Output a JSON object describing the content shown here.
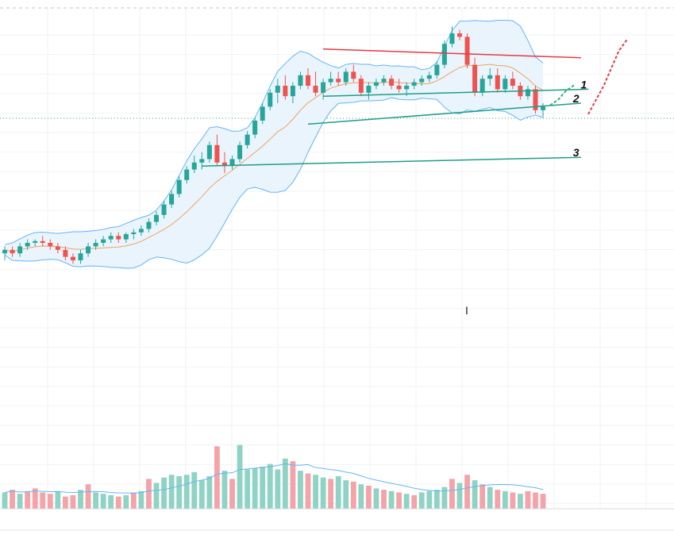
{
  "chart_data": {
    "type": "candlestick",
    "title": "",
    "xlabel": "",
    "ylabel": "",
    "grid": true,
    "ylim": [
      0,
      100
    ],
    "volume_ylim": [
      0,
      100
    ],
    "colors": {
      "up": "#26a69a",
      "down": "#ef5350",
      "volume_up": "#8fd3c4",
      "volume_down": "#f4a3a8",
      "band": "#64b5f6",
      "band_fill": "#eaf4fc",
      "ma": "#f0a35e",
      "channel": "#e53945",
      "support": "#1e9e86",
      "projection_up": "#2bb07f",
      "projection_down": "#e53945"
    },
    "candles": [
      {
        "o": 32,
        "h": 34,
        "l": 30,
        "c": 33
      },
      {
        "o": 33,
        "h": 34,
        "l": 31,
        "c": 32
      },
      {
        "o": 32,
        "h": 35,
        "l": 31,
        "c": 34
      },
      {
        "o": 34,
        "h": 36,
        "l": 33,
        "c": 35
      },
      {
        "o": 35,
        "h": 36,
        "l": 34,
        "c": 35.5
      },
      {
        "o": 35.5,
        "h": 37,
        "l": 34,
        "c": 35
      },
      {
        "o": 35,
        "h": 36,
        "l": 33,
        "c": 34
      },
      {
        "o": 34,
        "h": 35,
        "l": 32,
        "c": 33
      },
      {
        "o": 33,
        "h": 34,
        "l": 30,
        "c": 31
      },
      {
        "o": 31,
        "h": 32,
        "l": 29,
        "c": 30
      },
      {
        "o": 30,
        "h": 33,
        "l": 29,
        "c": 32
      },
      {
        "o": 32,
        "h": 35,
        "l": 31,
        "c": 34
      },
      {
        "o": 34,
        "h": 36,
        "l": 33,
        "c": 35
      },
      {
        "o": 35,
        "h": 37,
        "l": 34,
        "c": 36
      },
      {
        "o": 36,
        "h": 38,
        "l": 35,
        "c": 37
      },
      {
        "o": 37,
        "h": 38,
        "l": 35,
        "c": 36
      },
      {
        "o": 36,
        "h": 38,
        "l": 35,
        "c": 37.5
      },
      {
        "o": 37.5,
        "h": 39,
        "l": 36,
        "c": 38
      },
      {
        "o": 38,
        "h": 40,
        "l": 37,
        "c": 39
      },
      {
        "o": 39,
        "h": 42,
        "l": 38,
        "c": 41
      },
      {
        "o": 41,
        "h": 44,
        "l": 40,
        "c": 43
      },
      {
        "o": 43,
        "h": 47,
        "l": 42,
        "c": 46
      },
      {
        "o": 46,
        "h": 50,
        "l": 45,
        "c": 49
      },
      {
        "o": 49,
        "h": 54,
        "l": 48,
        "c": 53
      },
      {
        "o": 53,
        "h": 57,
        "l": 52,
        "c": 56
      },
      {
        "o": 56,
        "h": 60,
        "l": 55,
        "c": 58
      },
      {
        "o": 58,
        "h": 61,
        "l": 56,
        "c": 59
      },
      {
        "o": 59,
        "h": 64,
        "l": 58,
        "c": 63
      },
      {
        "o": 63,
        "h": 66,
        "l": 57,
        "c": 58
      },
      {
        "o": 58,
        "h": 61,
        "l": 55,
        "c": 57
      },
      {
        "o": 57,
        "h": 60,
        "l": 56,
        "c": 59
      },
      {
        "o": 59,
        "h": 64,
        "l": 58,
        "c": 63
      },
      {
        "o": 63,
        "h": 67,
        "l": 62,
        "c": 66
      },
      {
        "o": 66,
        "h": 71,
        "l": 65,
        "c": 70
      },
      {
        "o": 70,
        "h": 75,
        "l": 69,
        "c": 74
      },
      {
        "o": 74,
        "h": 79,
        "l": 73,
        "c": 78
      },
      {
        "o": 78,
        "h": 82,
        "l": 75,
        "c": 80
      },
      {
        "o": 80,
        "h": 83,
        "l": 76,
        "c": 77
      },
      {
        "o": 77,
        "h": 81,
        "l": 75,
        "c": 80
      },
      {
        "o": 80,
        "h": 84,
        "l": 79,
        "c": 83
      },
      {
        "o": 83,
        "h": 85,
        "l": 79,
        "c": 80
      },
      {
        "o": 80,
        "h": 84,
        "l": 77,
        "c": 78
      },
      {
        "o": 78,
        "h": 82,
        "l": 76,
        "c": 81
      },
      {
        "o": 81,
        "h": 84,
        "l": 80,
        "c": 82
      },
      {
        "o": 82,
        "h": 84,
        "l": 80,
        "c": 81
      },
      {
        "o": 81,
        "h": 85,
        "l": 80,
        "c": 84
      },
      {
        "o": 84,
        "h": 86,
        "l": 81,
        "c": 82
      },
      {
        "o": 82,
        "h": 83,
        "l": 77,
        "c": 78
      },
      {
        "o": 78,
        "h": 81,
        "l": 76,
        "c": 80
      },
      {
        "o": 80,
        "h": 82,
        "l": 79,
        "c": 81
      },
      {
        "o": 81,
        "h": 83,
        "l": 80,
        "c": 82
      },
      {
        "o": 82,
        "h": 83,
        "l": 79,
        "c": 80
      },
      {
        "o": 80,
        "h": 82,
        "l": 78,
        "c": 79
      },
      {
        "o": 79,
        "h": 81,
        "l": 77,
        "c": 80
      },
      {
        "o": 80,
        "h": 82,
        "l": 79,
        "c": 81
      },
      {
        "o": 81,
        "h": 83,
        "l": 80,
        "c": 82
      },
      {
        "o": 82,
        "h": 84,
        "l": 81,
        "c": 83
      },
      {
        "o": 83,
        "h": 87,
        "l": 82,
        "c": 86
      },
      {
        "o": 86,
        "h": 93,
        "l": 85,
        "c": 92
      },
      {
        "o": 92,
        "h": 97,
        "l": 91,
        "c": 95
      },
      {
        "o": 95,
        "h": 96,
        "l": 93,
        "c": 94
      },
      {
        "o": 94,
        "h": 95,
        "l": 85,
        "c": 86
      },
      {
        "o": 86,
        "h": 88,
        "l": 77,
        "c": 78
      },
      {
        "o": 78,
        "h": 83,
        "l": 77,
        "c": 82
      },
      {
        "o": 82,
        "h": 85,
        "l": 80,
        "c": 83
      },
      {
        "o": 83,
        "h": 85,
        "l": 78,
        "c": 79
      },
      {
        "o": 79,
        "h": 83,
        "l": 78,
        "c": 82
      },
      {
        "o": 82,
        "h": 84,
        "l": 79,
        "c": 80
      },
      {
        "o": 80,
        "h": 81,
        "l": 76,
        "c": 77
      },
      {
        "o": 77,
        "h": 80,
        "l": 76,
        "c": 79
      },
      {
        "o": 79,
        "h": 80,
        "l": 72,
        "c": 73
      },
      {
        "o": 73,
        "h": 75,
        "l": 71,
        "c": 74
      }
    ],
    "volume": [
      {
        "v": 12,
        "up": true
      },
      {
        "v": 14,
        "up": false
      },
      {
        "v": 11,
        "up": true
      },
      {
        "v": 13,
        "up": false
      },
      {
        "v": 15,
        "up": false
      },
      {
        "v": 12,
        "up": false
      },
      {
        "v": 11,
        "up": false
      },
      {
        "v": 13,
        "up": true
      },
      {
        "v": 9,
        "up": false
      },
      {
        "v": 10,
        "up": false
      },
      {
        "v": 14,
        "up": true
      },
      {
        "v": 18,
        "up": false
      },
      {
        "v": 12,
        "up": true
      },
      {
        "v": 11,
        "up": true
      },
      {
        "v": 10,
        "up": true
      },
      {
        "v": 9,
        "up": false
      },
      {
        "v": 10,
        "up": true
      },
      {
        "v": 12,
        "up": false
      },
      {
        "v": 13,
        "up": true
      },
      {
        "v": 22,
        "up": false
      },
      {
        "v": 19,
        "up": true
      },
      {
        "v": 23,
        "up": true
      },
      {
        "v": 25,
        "up": true
      },
      {
        "v": 24,
        "up": true
      },
      {
        "v": 25,
        "up": true
      },
      {
        "v": 27,
        "up": true
      },
      {
        "v": 21,
        "up": true
      },
      {
        "v": 24,
        "up": true
      },
      {
        "v": 46,
        "up": false
      },
      {
        "v": 28,
        "up": true
      },
      {
        "v": 22,
        "up": false
      },
      {
        "v": 47,
        "up": true
      },
      {
        "v": 29,
        "up": true
      },
      {
        "v": 30,
        "up": true
      },
      {
        "v": 31,
        "up": true
      },
      {
        "v": 33,
        "up": true
      },
      {
        "v": 29,
        "up": true
      },
      {
        "v": 37,
        "up": true
      },
      {
        "v": 35,
        "up": false
      },
      {
        "v": 28,
        "up": true
      },
      {
        "v": 26,
        "up": false
      },
      {
        "v": 25,
        "up": true
      },
      {
        "v": 23,
        "up": true
      },
      {
        "v": 22,
        "up": false
      },
      {
        "v": 24,
        "up": true
      },
      {
        "v": 21,
        "up": true
      },
      {
        "v": 20,
        "up": false
      },
      {
        "v": 18,
        "up": true
      },
      {
        "v": 17,
        "up": false
      },
      {
        "v": 15,
        "up": true
      },
      {
        "v": 14,
        "up": false
      },
      {
        "v": 13,
        "up": true
      },
      {
        "v": 12,
        "up": false
      },
      {
        "v": 11,
        "up": true
      },
      {
        "v": 10,
        "up": false
      },
      {
        "v": 12,
        "up": true
      },
      {
        "v": 13,
        "up": true
      },
      {
        "v": 14,
        "up": true
      },
      {
        "v": 16,
        "up": true
      },
      {
        "v": 22,
        "up": false
      },
      {
        "v": 19,
        "up": true
      },
      {
        "v": 25,
        "up": false
      },
      {
        "v": 21,
        "up": true
      },
      {
        "v": 18,
        "up": false
      },
      {
        "v": 16,
        "up": true
      },
      {
        "v": 14,
        "up": false
      },
      {
        "v": 13,
        "up": true
      },
      {
        "v": 12,
        "up": false
      },
      {
        "v": 11,
        "up": true
      },
      {
        "v": 13,
        "up": false
      },
      {
        "v": 12,
        "up": false
      },
      {
        "v": 11,
        "up": false
      }
    ],
    "projection_up": [
      [
        1,
        74.5
      ],
      [
        2,
        76
      ],
      [
        3,
        78.5
      ],
      [
        4,
        80
      ]
    ],
    "projection_down": [
      [
        6,
        72
      ],
      [
        8,
        80
      ],
      [
        10,
        90
      ],
      [
        11,
        93
      ]
    ],
    "annotations": [
      {
        "text": "1",
        "line": [
          [
            42,
            77
          ],
          [
            77,
            79
          ]
        ]
      },
      {
        "text": "2",
        "line": [
          [
            40,
            69
          ],
          [
            76,
            75
          ]
        ]
      },
      {
        "text": "3",
        "line": [
          [
            26,
            57
          ],
          [
            76,
            59.5
          ]
        ]
      }
    ],
    "resistance_line": [
      [
        42,
        90.5
      ],
      [
        76,
        88
      ]
    ],
    "cursor_marker": "I"
  }
}
